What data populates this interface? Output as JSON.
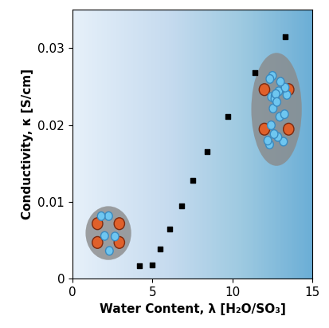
{
  "chart_data": {
    "type": "scatter",
    "x_label": "Water Content, λ [H₂O/SO₃]",
    "y_label": "Conductivity, κ [S/cm]",
    "x": [
      4.2,
      5.0,
      5.5,
      6.1,
      6.8,
      7.5,
      8.4,
      9.7,
      11.4,
      13.3
    ],
    "values": [
      0.0017,
      0.0018,
      0.0039,
      0.0065,
      0.0095,
      0.0128,
      0.0165,
      0.0211,
      0.0268,
      0.0315
    ],
    "color": "#000000",
    "marker": "square",
    "xlim": [
      0,
      15
    ],
    "xticks": [
      0,
      5,
      10,
      15
    ],
    "ylim": [
      0,
      0.035
    ],
    "yticks": [
      0,
      0.01,
      0.02,
      0.03
    ],
    "grid": false
  }
}
